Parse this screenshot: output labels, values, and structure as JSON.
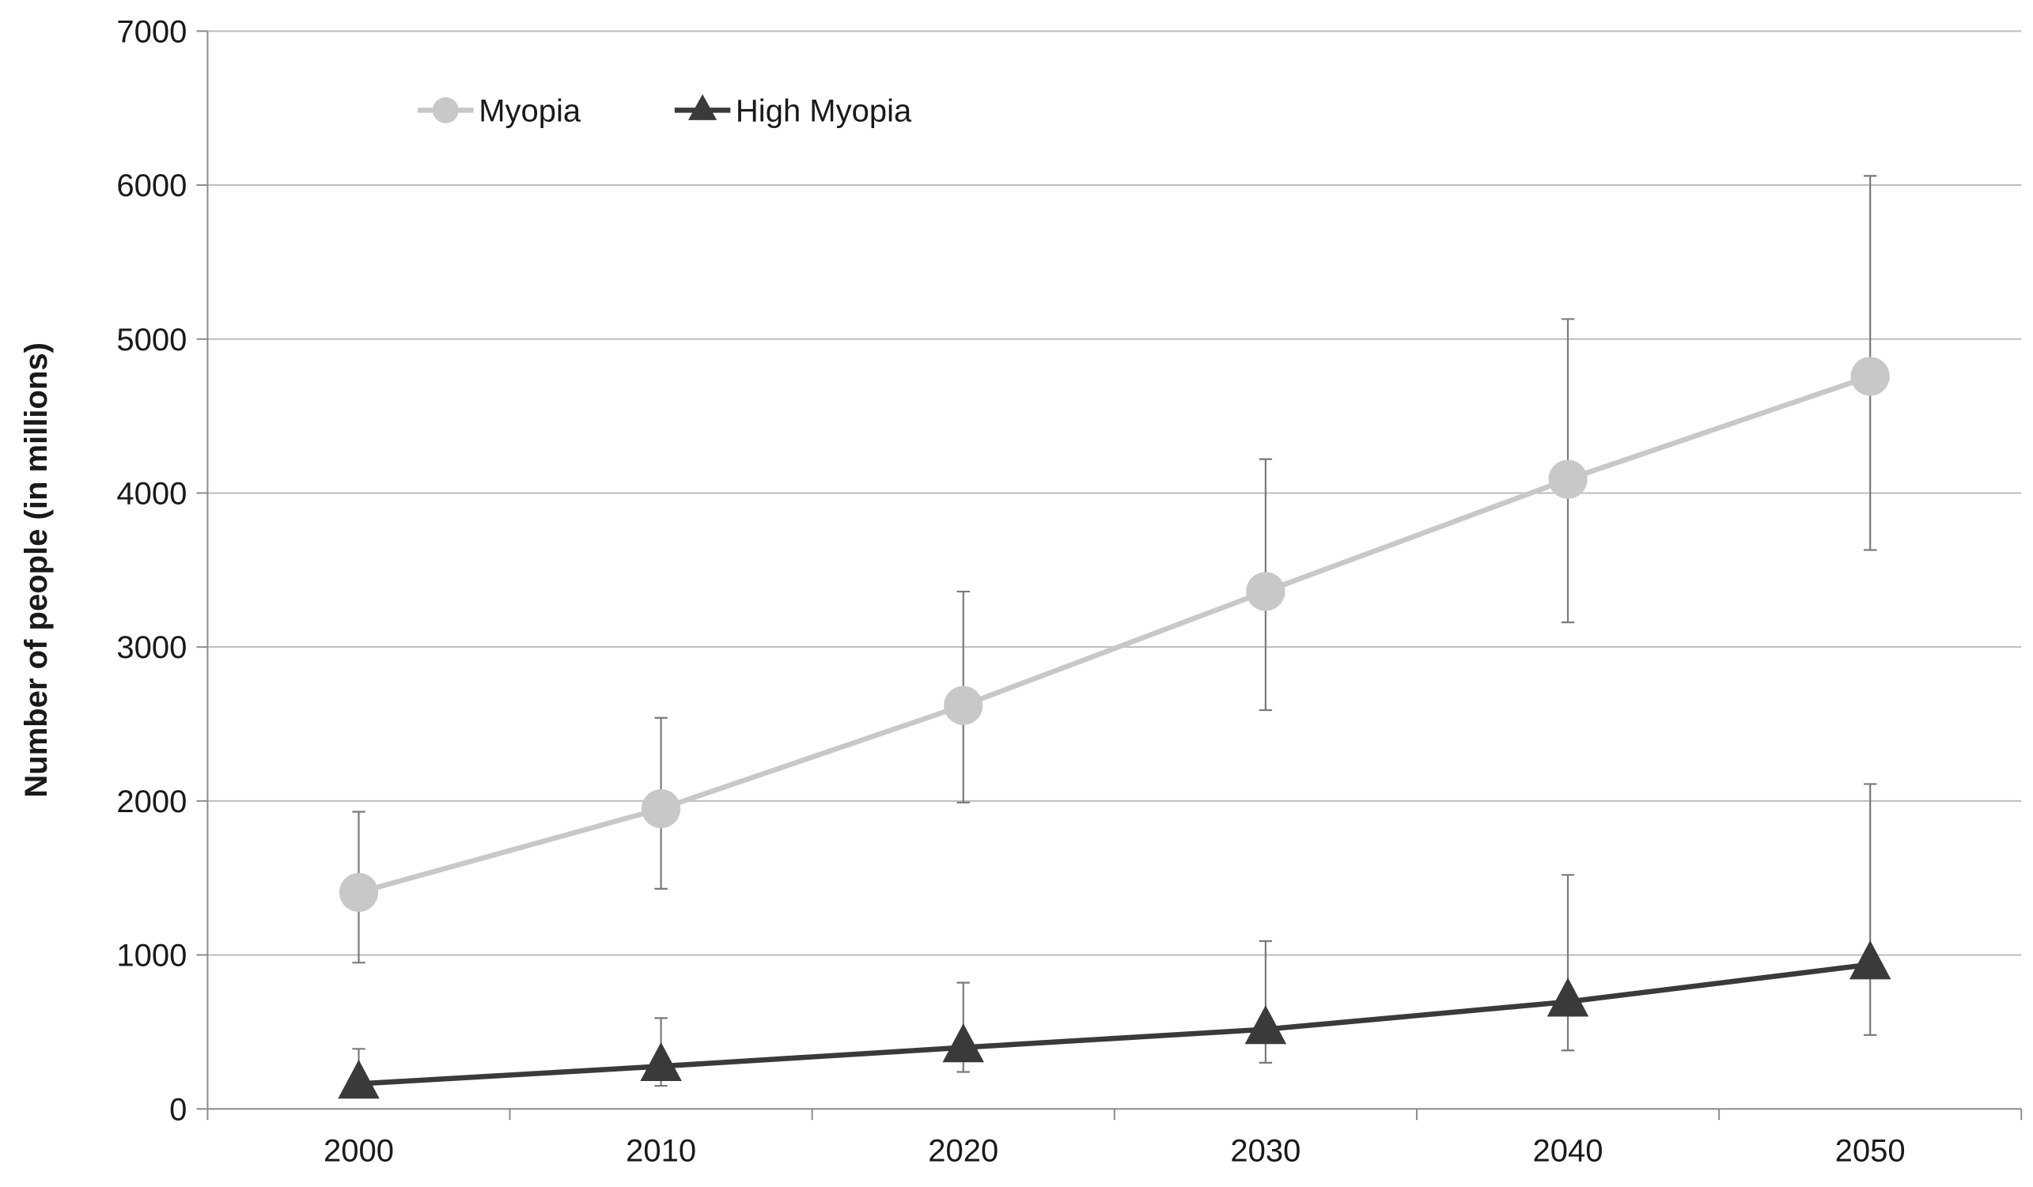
{
  "chart_data": {
    "type": "line",
    "title": "",
    "xlabel": "",
    "ylabel": "Number of people (in millions)",
    "categories": [
      "2000",
      "2010",
      "2020",
      "2030",
      "2040",
      "2050"
    ],
    "ylim": [
      0,
      7000
    ],
    "yticks": [
      "0",
      "1000",
      "2000",
      "3000",
      "4000",
      "5000",
      "6000",
      "7000"
    ],
    "grid": "horizontal",
    "legend_position": "top-left",
    "series": [
      {
        "name": "Myopia",
        "color": "#c8c8c8",
        "marker": "circle",
        "values": [
          1406,
          1950,
          2620,
          3361,
          4089,
          4758
        ],
        "error_low": [
          950,
          1430,
          1990,
          2590,
          3160,
          3630
        ],
        "error_high": [
          1930,
          2540,
          3360,
          4220,
          5130,
          6060
        ]
      },
      {
        "name": "High Myopia",
        "color": "#3a3a3a",
        "marker": "triangle",
        "values": [
          163,
          277,
          399,
          517,
          696,
          938
        ],
        "error_low": [
          100,
          150,
          240,
          300,
          380,
          480
        ],
        "error_high": [
          390,
          590,
          820,
          1090,
          1520,
          2110
        ]
      }
    ]
  }
}
